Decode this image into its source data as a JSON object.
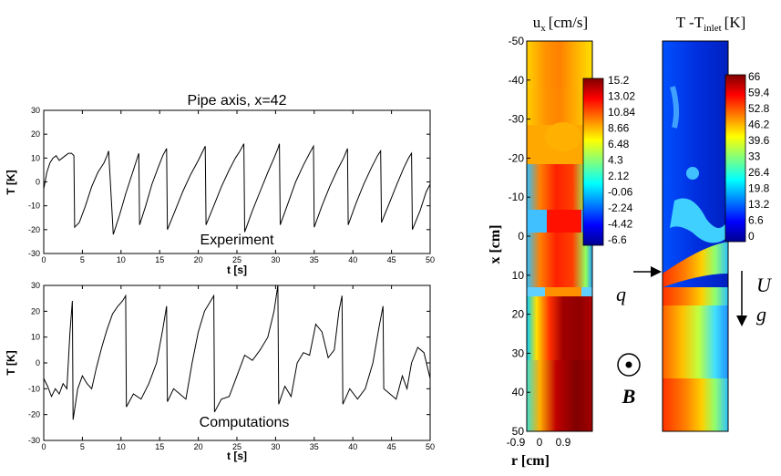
{
  "chart_data": [
    {
      "type": "line",
      "title": "Pipe axis, x=42",
      "annotation": "Experiment",
      "xlabel": "t [s]",
      "ylabel": "T [K]",
      "xlim": [
        0,
        50
      ],
      "ylim": [
        -30,
        30
      ],
      "xticks": [
        0,
        5,
        10,
        15,
        20,
        25,
        30,
        35,
        40,
        45,
        50
      ],
      "yticks": [
        -30,
        -20,
        -10,
        0,
        10,
        20,
        30
      ],
      "series": [
        {
          "color": "#000000",
          "x": [
            0,
            0.4,
            0.8,
            1.2,
            1.6,
            2.0,
            2.4,
            2.8,
            3.2,
            3.6,
            3.9,
            4.0,
            4.6,
            5.4,
            6.2,
            7.0,
            7.8,
            8.2,
            8.4,
            9.0,
            9.8,
            10.6,
            11.4,
            12.0,
            12.3,
            12.4,
            13.2,
            14.0,
            14.8,
            15.4,
            15.9,
            16.0,
            17.0,
            18.0,
            19.0,
            20.0,
            20.6,
            20.9,
            21.0,
            22.0,
            23.0,
            24.0,
            24.8,
            25.4,
            25.9,
            26.0,
            27.0,
            28.0,
            29.0,
            29.8,
            30.3,
            30.5,
            30.6,
            31.6,
            32.6,
            33.6,
            34.4,
            34.9,
            35.0,
            36.0,
            37.0,
            38.0,
            38.8,
            39.3,
            39.4,
            40.4,
            41.4,
            42.4,
            43.2,
            43.6,
            43.7,
            44.7,
            45.7,
            46.6,
            47.2,
            47.6,
            47.7,
            48.7,
            49.5,
            50.0
          ],
          "values": [
            -3,
            4,
            8,
            10,
            11,
            9,
            10,
            11,
            12,
            12,
            11,
            -19,
            -17,
            -10,
            -2,
            4,
            8,
            11,
            13,
            -22,
            -14,
            -5,
            3,
            9,
            12,
            -18,
            -10,
            -1,
            6,
            11,
            14,
            -20,
            -12,
            -4,
            3,
            9,
            13,
            15,
            -18,
            -10,
            -2,
            5,
            10,
            13,
            16,
            -21,
            -12,
            -4,
            4,
            10,
            14,
            16,
            -18,
            -9,
            0,
            7,
            12,
            15,
            -19,
            -10,
            -2,
            5,
            10,
            14,
            -18,
            -9,
            -1,
            6,
            11,
            13,
            -17,
            -9,
            -1,
            6,
            10,
            12,
            -20,
            -12,
            -4,
            -1
          ]
        }
      ]
    },
    {
      "type": "line",
      "annotation": "Computations",
      "xlabel": "t [s]",
      "ylabel": "T [K]",
      "xlim": [
        0,
        50
      ],
      "ylim": [
        -30,
        30
      ],
      "xticks": [
        0,
        5,
        10,
        15,
        20,
        25,
        30,
        35,
        40,
        45,
        50
      ],
      "yticks": [
        -30,
        -20,
        -10,
        0,
        10,
        20,
        30
      ],
      "series": [
        {
          "color": "#000000",
          "x": [
            0,
            0.5,
            1.0,
            1.5,
            2.0,
            2.5,
            3.0,
            3.4,
            3.7,
            3.8,
            4.4,
            5.0,
            5.6,
            6.2,
            6.8,
            7.5,
            8.2,
            8.9,
            9.6,
            10.2,
            10.6,
            10.7,
            11.6,
            12.6,
            13.6,
            14.6,
            15.4,
            15.9,
            16.0,
            16.8,
            17.6,
            18.4,
            19.2,
            20.0,
            20.8,
            21.6,
            22.0,
            22.1,
            23.0,
            24.0,
            25.0,
            26.0,
            27.0,
            28.0,
            29.0,
            29.8,
            30.3,
            30.4,
            31.2,
            32.0,
            32.8,
            33.6,
            34.4,
            35.2,
            36.0,
            36.8,
            37.6,
            38.2,
            38.6,
            38.7,
            39.6,
            40.6,
            41.6,
            42.6,
            43.4,
            43.9,
            44.0,
            44.8,
            45.6,
            46.4,
            47.0,
            47.6,
            48.4,
            49.2,
            50.0
          ],
          "values": [
            -6,
            -9,
            -13,
            -10,
            -12,
            -8,
            -10,
            12,
            24,
            -22,
            -10,
            -5,
            -8,
            -10,
            -2,
            6,
            13,
            19,
            22,
            24,
            26,
            -17,
            -12,
            -14,
            -8,
            0,
            13,
            22,
            -15,
            -10,
            -12,
            -14,
            0,
            12,
            20,
            24,
            26,
            -19,
            -14,
            -13,
            -5,
            3,
            1,
            5,
            10,
            20,
            30,
            -16,
            -9,
            -13,
            0,
            4,
            3,
            15,
            12,
            2,
            5,
            20,
            26,
            -16,
            -10,
            -14,
            -10,
            0,
            14,
            22,
            -10,
            -12,
            -14,
            -5,
            -10,
            0,
            6,
            4,
            -6
          ]
        }
      ]
    },
    {
      "type": "heatmap",
      "title": "u",
      "title_sub": "x",
      "title_unit": "[cm/s]",
      "xlabel": "r [cm]",
      "ylabel": "x [cm]",
      "xticks": [
        "-0.9",
        "0",
        "0.9"
      ],
      "yticks": [
        "-50",
        "-40",
        "-30",
        "-20",
        "-10",
        "0",
        "10",
        "20",
        "30",
        "40",
        "50"
      ],
      "legend": [
        "15.2",
        "13.02",
        "10.84",
        "8.66",
        "6.48",
        "4.3",
        "2.12",
        "-0.06",
        "-2.24",
        "-4.42",
        "-6.6"
      ]
    },
    {
      "type": "heatmap",
      "title": "T -T",
      "title_sub": "inlet",
      "title_unit": "[K]",
      "legend": [
        "66",
        "59.4",
        "52.8",
        "46.2",
        "39.6",
        "33",
        "26.4",
        "19.8",
        "13.2",
        "6.6",
        "0"
      ],
      "labels": {
        "heat_flux": "q",
        "velocity": "U",
        "gravity": "g",
        "field": "B"
      }
    }
  ],
  "colors": {
    "jet_dark_red": "#7f0000",
    "jet_red": "#ff0000",
    "jet_yellow": "#ffff00",
    "jet_cyan": "#00ffff",
    "jet_blue": "#0000ff",
    "jet_dark_blue": "#00008f"
  }
}
